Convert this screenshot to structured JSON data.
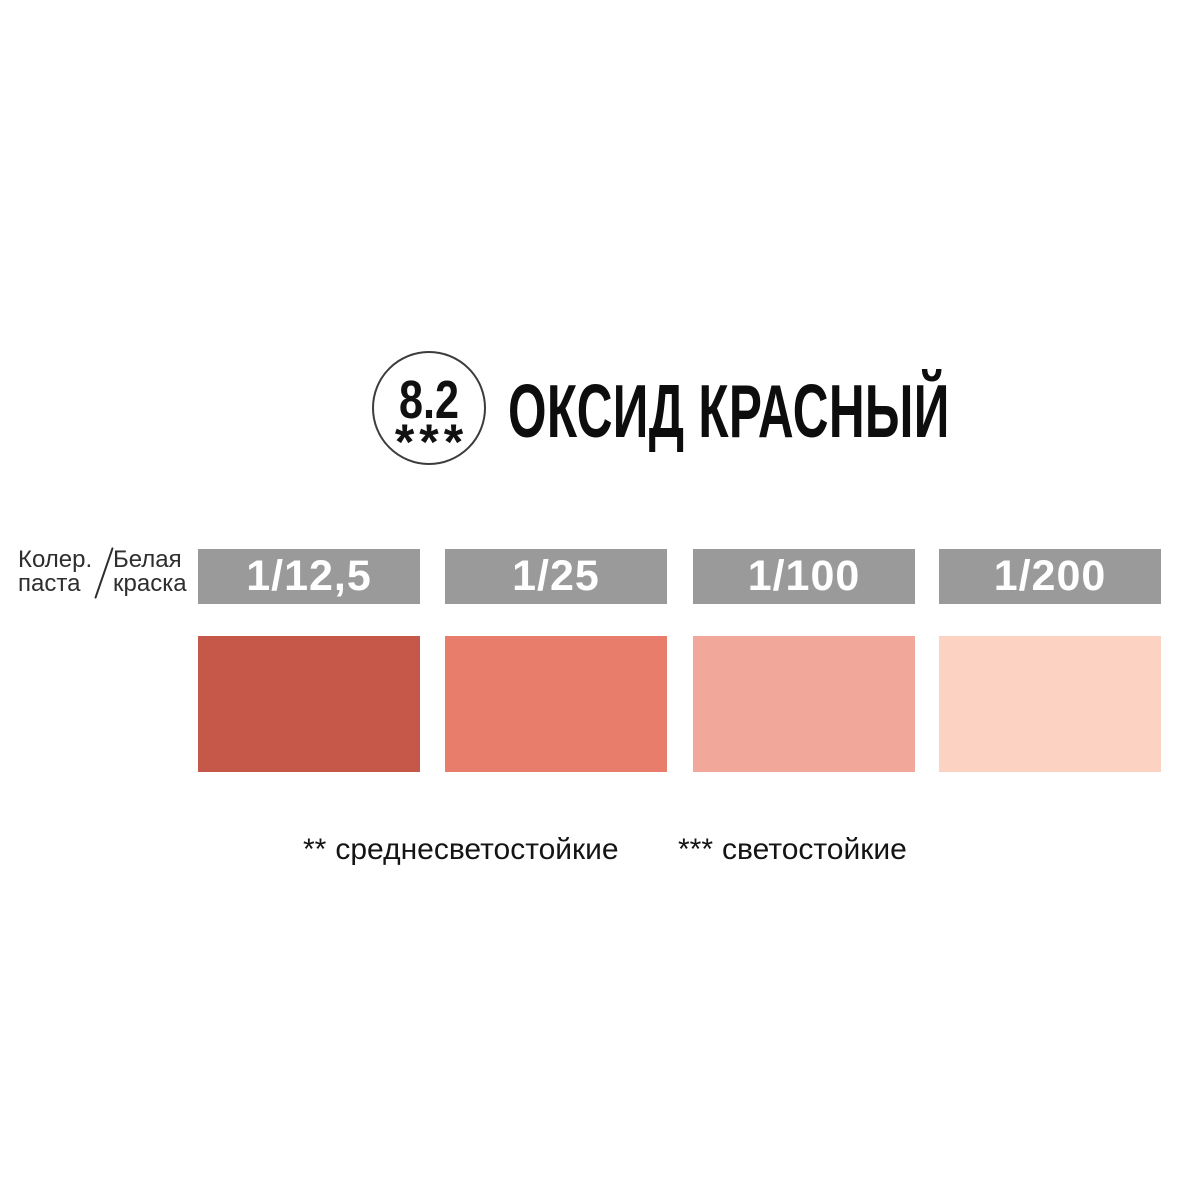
{
  "header": {
    "badge_number": "8.2",
    "badge_stars": "***",
    "title": "ОКСИД КРАСНЫЙ"
  },
  "ratio_caption": {
    "left_line1": "Колер.",
    "left_line2": "паста",
    "right_line1": "Белая",
    "right_line2": "краска"
  },
  "colors": {
    "bar_gray": "#9a9a9a",
    "title_text": "#0d0d0d",
    "bar_text": "#ffffff"
  },
  "swatches": [
    {
      "ratio": "1/12,5",
      "color": "#c6584a"
    },
    {
      "ratio": "1/25",
      "color": "#e87d6c"
    },
    {
      "ratio": "1/100",
      "color": "#f1a89a"
    },
    {
      "ratio": "1/200",
      "color": "#fcd2c3"
    }
  ],
  "footnotes": [
    {
      "marker": "**",
      "text": "среднесветостойкие"
    },
    {
      "marker": "***",
      "text": "светостойкие"
    }
  ],
  "chart_data": {
    "type": "table",
    "title": "ОКСИД КРАСНЫЙ",
    "pigment_index": "8.2",
    "lightfastness_stars": 3,
    "row_label": "Колер. паста / Белая краска",
    "categories": [
      "1/12,5",
      "1/25",
      "1/100",
      "1/200"
    ],
    "values": [
      "#c6584a",
      "#e87d6c",
      "#f1a89a",
      "#fcd2c3"
    ],
    "legend": [
      "** среднесветостойкие",
      "*** светостойкие"
    ]
  }
}
